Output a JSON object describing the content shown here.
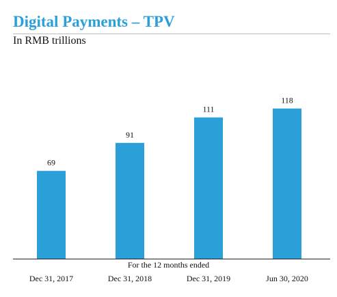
{
  "title": "Digital Payments – TPV",
  "subtitle": "In RMB trillions",
  "caption": "For the 12 months ended",
  "colors": {
    "bar": "#2a9fd8",
    "title": "#2aa0da",
    "axis": "#222222",
    "text": "#111111"
  },
  "chart_data": {
    "type": "bar",
    "title": "Digital Payments – TPV",
    "subtitle": "In RMB trillions",
    "xlabel": "For the 12 months ended",
    "ylabel": "",
    "categories": [
      "Dec 31, 2017",
      "Dec 31, 2018",
      "Dec 31, 2019",
      "Jun 30, 2020"
    ],
    "values": [
      69,
      91,
      111,
      118
    ],
    "data_labels": [
      "69",
      "91",
      "111",
      "118"
    ],
    "ylim": [
      0,
      128
    ],
    "grid": false,
    "legend": "none"
  }
}
